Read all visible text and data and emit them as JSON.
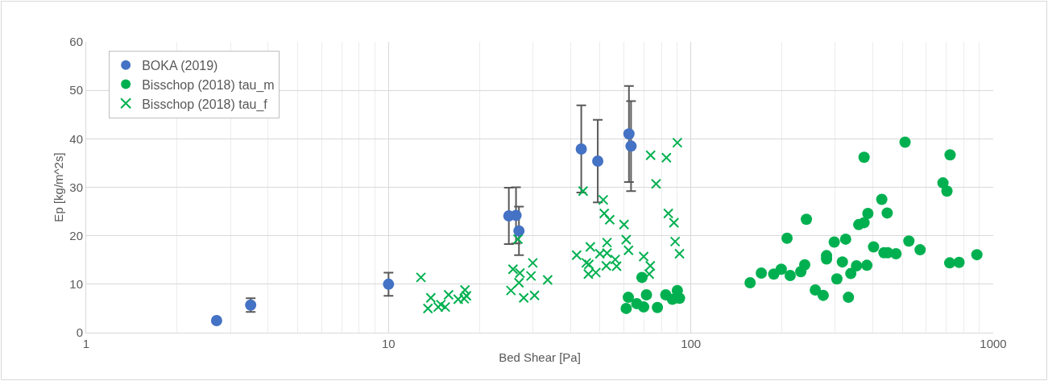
{
  "chart_data": {
    "type": "scatter",
    "xlabel": "Bed Shear [Pa]",
    "ylabel": "Ep [kg/m^2s]",
    "log": "x",
    "xlim": [
      1,
      1000
    ],
    "xticks": [
      1,
      10,
      100,
      1000
    ],
    "ylim": [
      0,
      60
    ],
    "yticks": [
      0,
      10,
      20,
      30,
      40,
      50,
      60
    ],
    "grid": true,
    "legend": "top left",
    "series": [
      {
        "name": "BOKA (2019)",
        "color": "#4472c4",
        "marker": "circle",
        "x": [
          2.7,
          3.5,
          10,
          25,
          26.4,
          27,
          43.4,
          49.2,
          62.4,
          63.4
        ],
        "values": [
          2.5,
          5.7,
          10,
          24.1,
          24.2,
          21,
          37.9,
          35.4,
          41,
          38.5
        ],
        "errors": [
          null,
          1.4,
          2.4,
          5.8,
          5.8,
          5,
          9,
          8.5,
          9.9,
          9.3
        ]
      },
      {
        "name": "Bisschop (2018) tau_m",
        "color": "#00b050",
        "marker": "circle",
        "x": [
          68.9,
          62.1,
          61.1,
          66.2,
          69.8,
          71.3,
          77.5,
          82.6,
          90.2,
          86.9,
          91.7,
          157,
          171,
          188,
          199,
          208,
          213,
          231,
          238,
          241,
          258,
          274,
          281,
          281,
          298,
          304,
          317,
          325,
          332,
          338,
          353,
          359,
          374,
          374,
          382,
          385,
          402,
          428,
          435,
          448,
          446,
          477,
          511,
          526,
          573,
          682,
          703,
          720,
          718,
          771,
          883
        ],
        "values": [
          11.4,
          7.3,
          5,
          6,
          5.3,
          7.8,
          5.2,
          7.8,
          8.7,
          6.9,
          7.1,
          10.3,
          12.3,
          12.1,
          13.1,
          19.5,
          11.8,
          12.6,
          14,
          23.4,
          8.8,
          7.7,
          15.9,
          15.2,
          18.7,
          11.1,
          14.6,
          19.3,
          7.3,
          12.2,
          13.8,
          22.3,
          22.7,
          36.2,
          13.9,
          24.6,
          17.7,
          27.5,
          16.5,
          16.5,
          24.7,
          16.3,
          39.3,
          18.9,
          17.1,
          30.9,
          29.2,
          36.7,
          14.4,
          14.5,
          16.1
        ]
      },
      {
        "name": "Bisschop (2018) tau_f",
        "color": "#00b050",
        "marker": "cross",
        "x": [
          12.8,
          13.8,
          13.5,
          14.6,
          14.9,
          15.4,
          15.8,
          17,
          17.9,
          18.1,
          17.8,
          26.8,
          25.8,
          27.2,
          27,
          25.4,
          30,
          29.6,
          28,
          30.4,
          33.6,
          44,
          90.2,
          73.6,
          83,
          76.7,
          51.3,
          51.7,
          53.9,
          60.1,
          84.2,
          87.9,
          61.1,
          52.8,
          46.5,
          41.9,
          50,
          52.8,
          62.2,
          69.8,
          88.7,
          91.7,
          45.1,
          46,
          56.2,
          52.5,
          56.8,
          45.8,
          48.5,
          73.4,
          72.8
        ],
        "values": [
          11.4,
          7.2,
          5,
          5.3,
          5.8,
          5.3,
          7.8,
          6.9,
          8.8,
          7.6,
          7,
          19.3,
          13.1,
          12.3,
          10.3,
          8.7,
          14.4,
          11.7,
          7.2,
          7.7,
          10.9,
          29.2,
          39.2,
          36.6,
          36.1,
          30.7,
          27.4,
          24.6,
          23.3,
          22.3,
          24.6,
          22.7,
          19.2,
          18.6,
          17.7,
          16,
          16.3,
          16.4,
          17,
          15.7,
          18.8,
          16.3,
          14.4,
          14.1,
          15.1,
          13.8,
          13.7,
          12.1,
          12.4,
          13.8,
          12.1
        ]
      }
    ]
  }
}
